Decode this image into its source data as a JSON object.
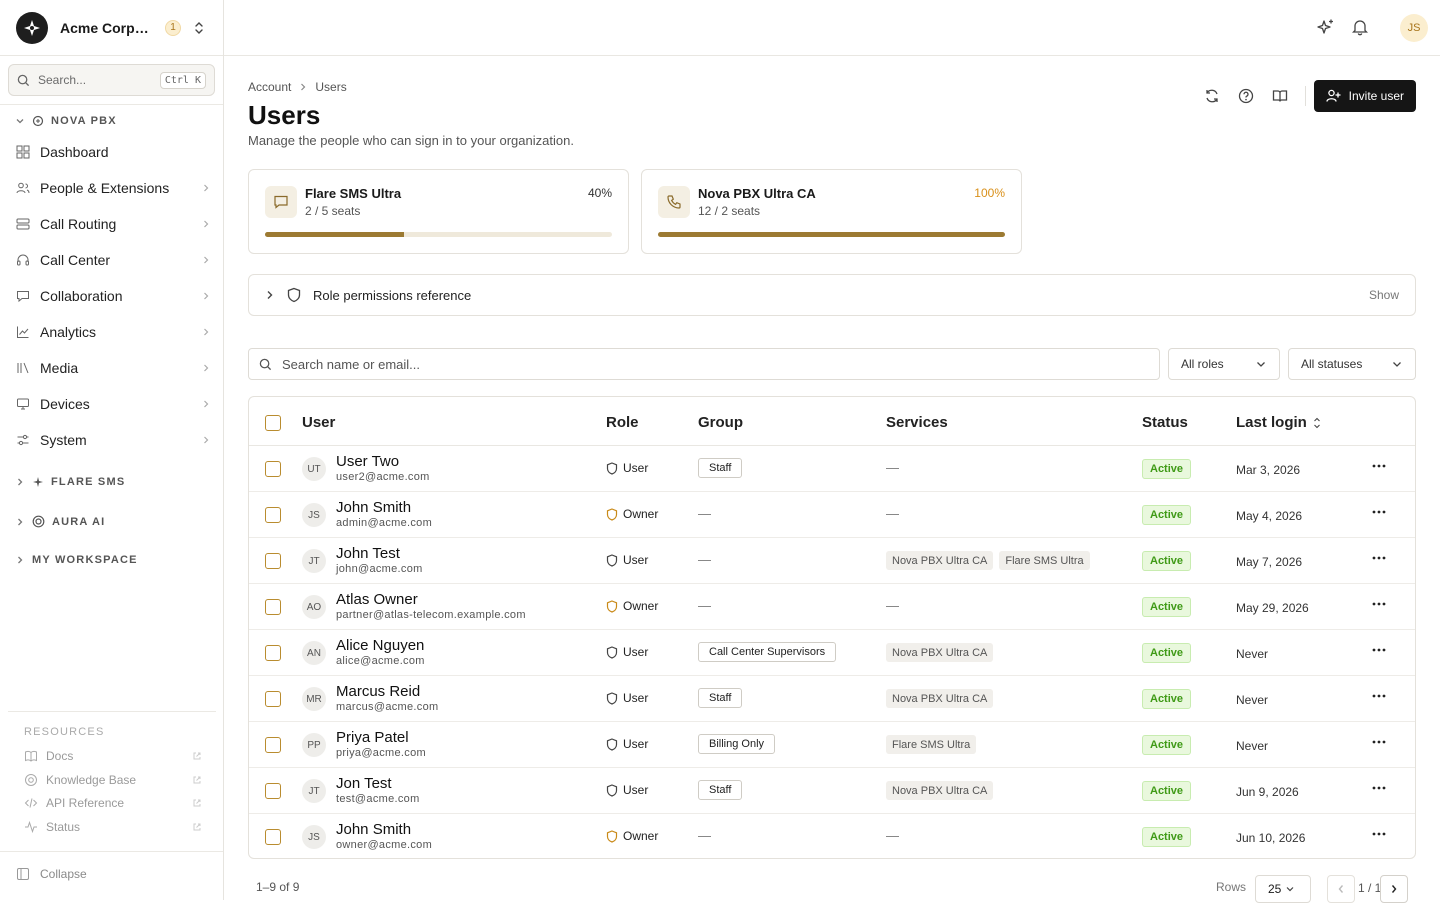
{
  "org": {
    "name": "Acme Corporation",
    "badge": "1",
    "avatar": "JS"
  },
  "search": {
    "placeholder": "Search...",
    "shortcut": "Ctrl K"
  },
  "sidebar": {
    "section_nova": "NOVA PBX",
    "items": [
      {
        "label": "Dashboard",
        "icon": "grid-icon"
      },
      {
        "label": "People & Extensions",
        "icon": "people-icon"
      },
      {
        "label": "Call Routing",
        "icon": "routing-icon"
      },
      {
        "label": "Call Center",
        "icon": "headset-icon"
      },
      {
        "label": "Collaboration",
        "icon": "chat-icon"
      },
      {
        "label": "Analytics",
        "icon": "chart-icon"
      },
      {
        "label": "Media",
        "icon": "library-icon"
      },
      {
        "label": "Devices",
        "icon": "monitor-icon"
      },
      {
        "label": "System",
        "icon": "sliders-icon"
      }
    ],
    "section_flare": "FLARE SMS",
    "section_aura": "AURA AI",
    "section_workspace": "MY WORKSPACE",
    "resources_title": "RESOURCES",
    "resources": [
      {
        "label": "Docs"
      },
      {
        "label": "Knowledge Base"
      },
      {
        "label": "API Reference"
      },
      {
        "label": "Status"
      }
    ],
    "collapse": "Collapse"
  },
  "breadcrumb": {
    "root": "Account",
    "current": "Users"
  },
  "page": {
    "title": "Users",
    "subtitle": "Manage the people who can sign in to your organization."
  },
  "actions": {
    "invite": "Invite user"
  },
  "cards": [
    {
      "name": "Flare SMS Ultra",
      "seats": "2 / 5 seats",
      "pct": "40%",
      "progress": 0.4,
      "pct_color": "#333333"
    },
    {
      "name": "Nova PBX Ultra CA",
      "seats": "12 / 2 seats",
      "pct": "100%",
      "progress": 1.0,
      "pct_color": "#d9901a"
    }
  ],
  "role_ref": {
    "label": "Role permissions reference",
    "toggle": "Show"
  },
  "filters": {
    "search_placeholder": "Search name or email...",
    "roles": "All roles",
    "statuses": "All statuses"
  },
  "table": {
    "headers": {
      "user": "User",
      "role": "Role",
      "group": "Group",
      "services": "Services",
      "status": "Status",
      "last_login": "Last login"
    },
    "rows": [
      {
        "initials": "UT",
        "name": "User Two",
        "email": "user2@acme.com",
        "role": "User",
        "group": "Staff",
        "services": [],
        "status": "Active",
        "last_login": "Mar 3, 2026"
      },
      {
        "initials": "JS",
        "name": "John Smith",
        "email": "admin@acme.com",
        "role": "Owner",
        "group": "",
        "services": [],
        "status": "Active",
        "last_login": "May 4, 2026"
      },
      {
        "initials": "JT",
        "name": "John Test",
        "email": "john@acme.com",
        "role": "User",
        "group": "",
        "services": [
          "Nova PBX Ultra CA",
          "Flare SMS Ultra"
        ],
        "status": "Active",
        "last_login": "May 7, 2026"
      },
      {
        "initials": "AO",
        "name": "Atlas Owner",
        "email": "partner@atlas-telecom.example.com",
        "role": "Owner",
        "group": "",
        "services": [],
        "status": "Active",
        "last_login": "May 29, 2026"
      },
      {
        "initials": "AN",
        "name": "Alice Nguyen",
        "email": "alice@acme.com",
        "role": "User",
        "group": "Call Center Supervisors",
        "services": [
          "Nova PBX Ultra CA"
        ],
        "status": "Active",
        "last_login": "Never"
      },
      {
        "initials": "MR",
        "name": "Marcus Reid",
        "email": "marcus@acme.com",
        "role": "User",
        "group": "Staff",
        "services": [
          "Nova PBX Ultra CA"
        ],
        "status": "Active",
        "last_login": "Never"
      },
      {
        "initials": "PP",
        "name": "Priya Patel",
        "email": "priya@acme.com",
        "role": "User",
        "group": "Billing Only",
        "services": [
          "Flare SMS Ultra"
        ],
        "status": "Active",
        "last_login": "Never"
      },
      {
        "initials": "JT",
        "name": "Jon Test",
        "email": "test@acme.com",
        "role": "User",
        "group": "Staff",
        "services": [
          "Nova PBX Ultra CA"
        ],
        "status": "Active",
        "last_login": "Jun 9, 2026"
      },
      {
        "initials": "JS",
        "name": "John Smith",
        "email": "owner@acme.com",
        "role": "Owner",
        "group": "",
        "services": [],
        "status": "Active",
        "last_login": "Jun 10, 2026"
      }
    ],
    "empty": "—"
  },
  "footer": {
    "count": "1–9 of 9",
    "rows_label": "Rows",
    "rows_value": "25",
    "page": "1 / 1"
  }
}
